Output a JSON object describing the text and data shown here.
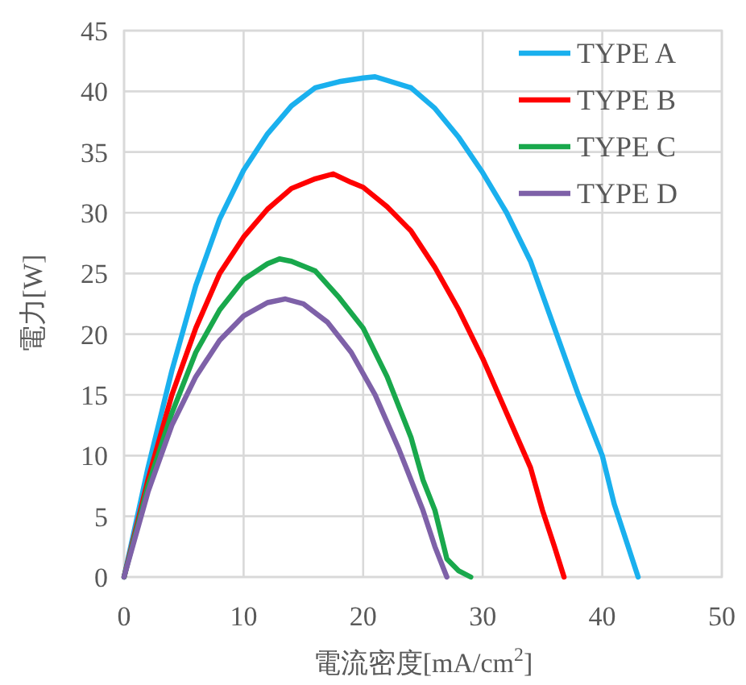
{
  "chart_data": {
    "type": "line",
    "xlabel": "電流密度[mA/cm$^{2}$]",
    "ylabel": "電力[W]",
    "xlim": [
      0,
      50
    ],
    "ylim": [
      0,
      45
    ],
    "xticks": [
      0,
      10,
      20,
      30,
      40,
      50
    ],
    "yticks": [
      0,
      5,
      10,
      15,
      20,
      25,
      30,
      35,
      40,
      45
    ],
    "grid": true,
    "legend": "top right",
    "marker": "none",
    "line_style": "solid",
    "series": [
      {
        "name": "TYPE A",
        "color": "#1ab0ee",
        "x": [
          0,
          2,
          4,
          6,
          8,
          10,
          12,
          14,
          16,
          18,
          20,
          21,
          22,
          24,
          26,
          28,
          30,
          32,
          34,
          36,
          38,
          40,
          41,
          42,
          43
        ],
        "values": [
          0,
          9,
          17,
          24,
          29.5,
          33.5,
          36.5,
          38.8,
          40.3,
          40.8,
          41.1,
          41.2,
          40.9,
          40.3,
          38.6,
          36.2,
          33.3,
          30,
          26,
          20.5,
          15,
          10,
          6,
          3,
          0
        ]
      },
      {
        "name": "TYPE B",
        "color": "#ff0000",
        "x": [
          0,
          2,
          4,
          6,
          8,
          10,
          12,
          14,
          16,
          17.5,
          19,
          20,
          22,
          24,
          26,
          28,
          30,
          32,
          34,
          35,
          36,
          36.8
        ],
        "values": [
          0,
          8,
          15,
          20.5,
          25,
          28,
          30.3,
          32,
          32.8,
          33.2,
          32.5,
          32.1,
          30.5,
          28.5,
          25.5,
          22,
          18,
          13.5,
          9,
          5.5,
          2.5,
          0
        ]
      },
      {
        "name": "TYPE C",
        "color": "#19a84c",
        "x": [
          0,
          2,
          4,
          6,
          8,
          10,
          12,
          13,
          14,
          16,
          18,
          20,
          22,
          24,
          25,
          26,
          27,
          28,
          29
        ],
        "values": [
          0,
          7.5,
          13.5,
          18.5,
          22,
          24.5,
          25.8,
          26.2,
          26,
          25.2,
          23,
          20.5,
          16.5,
          11.5,
          8,
          5.5,
          1.5,
          0.5,
          0
        ]
      },
      {
        "name": "TYPE D",
        "color": "#7e61a8",
        "x": [
          0,
          2,
          4,
          6,
          8,
          10,
          12,
          13.5,
          15,
          17,
          19,
          21,
          23,
          25,
          26,
          27
        ],
        "values": [
          0,
          7,
          12.5,
          16.5,
          19.5,
          21.5,
          22.6,
          22.9,
          22.5,
          21,
          18.5,
          15,
          10.5,
          5.5,
          2.5,
          0
        ]
      }
    ]
  }
}
